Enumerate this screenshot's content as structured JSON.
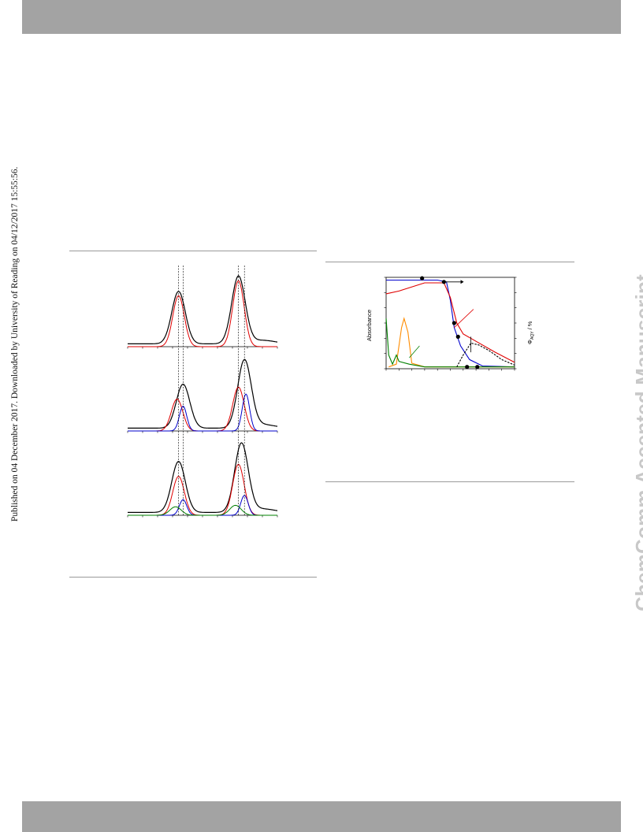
{
  "side_note": "Published on 04 December 2017. Downloaded by University of Reading on 04/12/2017 15:55:56.",
  "watermark": "ChemComm Accepted Manuscript",
  "header_band_color": "#a3a3a3",
  "footer_band_color": "#a3a3a3",
  "chart_data": [
    {
      "type": "line",
      "title": "",
      "panels": [
        {
          "name": "top",
          "series": [
            {
              "name": "",
              "color": "#000000",
              "peaks": [
                {
                  "x": 0.34,
                  "height": 0.74
                },
                {
                  "x": 0.74,
                  "height": 0.95
                }
              ]
            },
            {
              "name": "",
              "color": "#e00000",
              "peaks": [
                {
                  "x": 0.34,
                  "height": 0.72
                },
                {
                  "x": 0.74,
                  "height": 0.93
                }
              ]
            }
          ]
        },
        {
          "name": "middle",
          "series": [
            {
              "name": "",
              "color": "#000000",
              "peaks": [
                {
                  "x": 0.37,
                  "height": 0.62
                },
                {
                  "x": 0.78,
                  "height": 0.95
                }
              ]
            },
            {
              "name": "",
              "color": "#e00000",
              "peaks": [
                {
                  "x": 0.33,
                  "height": 0.45
                },
                {
                  "x": 0.74,
                  "height": 0.62
                }
              ]
            },
            {
              "name": "",
              "color": "#0000cc",
              "peaks": [
                {
                  "x": 0.37,
                  "height": 0.35
                },
                {
                  "x": 0.79,
                  "height": 0.52
                }
              ]
            }
          ]
        },
        {
          "name": "bottom",
          "series": [
            {
              "name": "",
              "color": "#000000",
              "peaks": [
                {
                  "x": 0.34,
                  "height": 0.72
                },
                {
                  "x": 0.76,
                  "height": 0.97
                }
              ]
            },
            {
              "name": "",
              "color": "#e00000",
              "peaks": [
                {
                  "x": 0.34,
                  "height": 0.55
                },
                {
                  "x": 0.74,
                  "height": 0.72
                }
              ]
            },
            {
              "name": "",
              "color": "#0000cc",
              "peaks": [
                {
                  "x": 0.37,
                  "height": 0.22
                },
                {
                  "x": 0.78,
                  "height": 0.28
                }
              ]
            },
            {
              "name": "",
              "color": "#008000",
              "peaks": [
                {
                  "x": 0.32,
                  "height": 0.12
                },
                {
                  "x": 0.72,
                  "height": 0.14
                }
              ]
            }
          ]
        }
      ]
    },
    {
      "type": "line",
      "title": "",
      "ylabel": "Absorbance",
      "ylabel_right": "Φ",
      "ylabel_right_sub": "AQY",
      "ylabel_right_unit": " / %",
      "series": [
        {
          "name": "",
          "color": "#0000cc",
          "points": [
            [
              0,
              0.97
            ],
            [
              0.1,
              0.97
            ],
            [
              0.4,
              0.97
            ],
            [
              0.47,
              0.95
            ],
            [
              0.5,
              0.75
            ],
            [
              0.53,
              0.45
            ],
            [
              0.58,
              0.25
            ],
            [
              0.65,
              0.1
            ],
            [
              0.75,
              0.03
            ],
            [
              1,
              0.02
            ]
          ]
        },
        {
          "name": "",
          "color": "#e00000",
          "points": [
            [
              0,
              0.82
            ],
            [
              0.1,
              0.85
            ],
            [
              0.3,
              0.94
            ],
            [
              0.45,
              0.94
            ],
            [
              0.5,
              0.78
            ],
            [
              0.55,
              0.5
            ],
            [
              0.6,
              0.38
            ],
            [
              0.7,
              0.3
            ],
            [
              0.85,
              0.18
            ],
            [
              1,
              0.07
            ]
          ]
        },
        {
          "name": "",
          "color": "#ff8c00",
          "points": [
            [
              0.02,
              0.02
            ],
            [
              0.08,
              0.05
            ],
            [
              0.12,
              0.45
            ],
            [
              0.14,
              0.55
            ],
            [
              0.17,
              0.4
            ],
            [
              0.2,
              0.06
            ],
            [
              0.3,
              0.02
            ],
            [
              1,
              0.02
            ]
          ]
        },
        {
          "name": "",
          "color": "#008000",
          "points": [
            [
              0.0,
              0.55
            ],
            [
              0.02,
              0.15
            ],
            [
              0.05,
              0.05
            ],
            [
              0.08,
              0.15
            ],
            [
              0.1,
              0.08
            ],
            [
              0.18,
              0.05
            ],
            [
              0.3,
              0.02
            ],
            [
              1,
              0.02
            ]
          ]
        },
        {
          "name": "",
          "color": "#000000",
          "style": "dashed",
          "points": [
            [
              0.55,
              0.02
            ],
            [
              0.6,
              0.15
            ],
            [
              0.66,
              0.28
            ],
            [
              0.72,
              0.26
            ],
            [
              0.8,
              0.2
            ],
            [
              0.9,
              0.1
            ],
            [
              1,
              0.04
            ]
          ]
        }
      ],
      "markers": [
        [
          0.28,
          0.99
        ],
        [
          0.45,
          0.95
        ],
        [
          0.53,
          0.5
        ],
        [
          0.56,
          0.35
        ],
        [
          0.63,
          0.02
        ],
        [
          0.71,
          0.02
        ]
      ]
    }
  ]
}
